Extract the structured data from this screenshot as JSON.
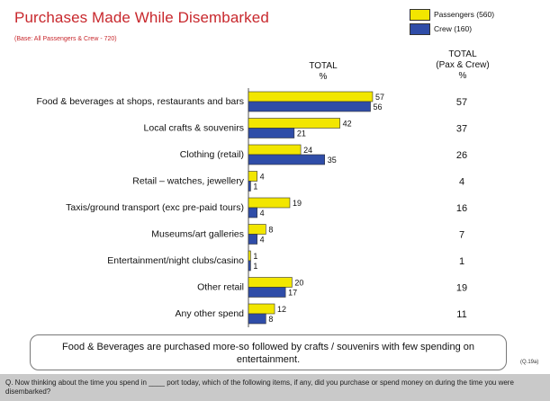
{
  "title": "Purchases Made While Disembarked",
  "base_note": "(Base: All Passengers & Crew - 720)",
  "legend": [
    {
      "name": "Passengers (560)",
      "color": "#f2e600"
    },
    {
      "name": "Crew (160)",
      "color": "#2f4da8"
    }
  ],
  "headers": {
    "total_line1": "TOTAL",
    "total_line2": "%",
    "pax_line1": "TOTAL",
    "pax_line2": "(Pax & Crew)",
    "pax_line3": "%"
  },
  "chart_data": {
    "type": "bar",
    "orientation": "horizontal",
    "categories": [
      "Food & beverages at shops, restaurants and bars",
      "Local crafts & souvenirs",
      "Clothing (retail)",
      "Retail – watches, jewellery",
      "Taxis/ground transport (exc pre-paid tours)",
      "Museums/art galleries",
      "Entertainment/night clubs/casino",
      "Other retail",
      "Any other spend"
    ],
    "series": [
      {
        "name": "Passengers (560)",
        "values": [
          57,
          42,
          24,
          4,
          19,
          8,
          1,
          20,
          12
        ],
        "color": "#f2e600"
      },
      {
        "name": "Crew (160)",
        "values": [
          56,
          21,
          35,
          1,
          4,
          4,
          1,
          17,
          8
        ],
        "color": "#2f4da8"
      }
    ],
    "totals": [
      57,
      37,
      26,
      4,
      16,
      7,
      1,
      19,
      11
    ],
    "xlim": [
      0,
      60
    ],
    "grid": false
  },
  "callout": "Food & Beverages are purchased more-so followed by crafts / souvenirs with few spending on entertainment.",
  "question_ref": "(Q.19a)",
  "question": "Q. Now thinking about the time you spend in ____ port today, which of the following items, if any, did you purchase or spend money on during the time you were disembarked?"
}
